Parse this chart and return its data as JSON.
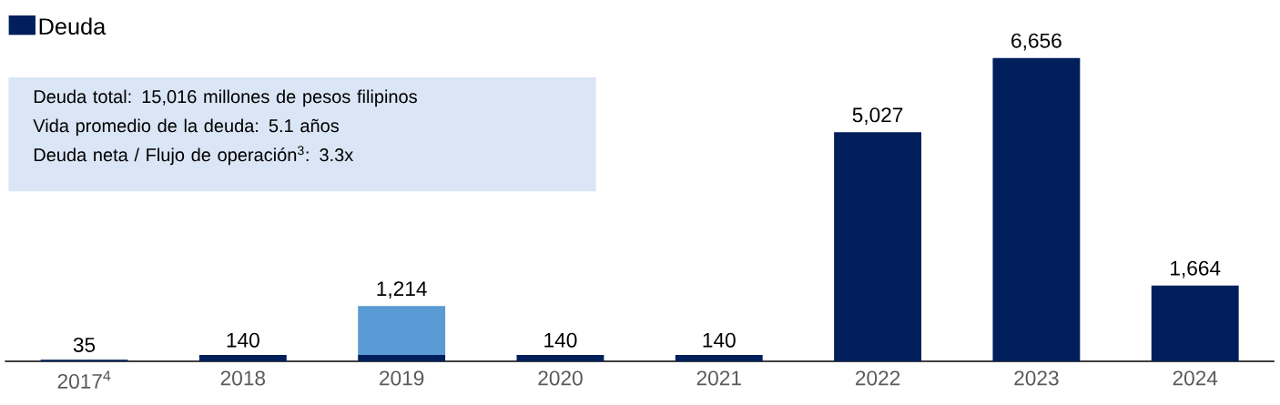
{
  "chart_data": {
    "type": "bar",
    "stacked": true,
    "legend": "top left",
    "categories": [
      "2017$^{4}$",
      "2018",
      "2019",
      "2020",
      "2021",
      "2022",
      "2023",
      "2024"
    ],
    "series": [
      {
        "name": "Deuda",
        "color": "#001f5b",
        "values": [
          35,
          140,
          140,
          140,
          140,
          5027,
          6656,
          1664
        ],
        "value_labels": [
          "35",
          "140",
          null,
          "140",
          "140",
          "5,027",
          "6,656",
          "1,664"
        ]
      },
      {
        "color": "#5b9bd5",
        "values": [
          null,
          null,
          1074,
          null,
          null,
          null,
          null,
          null
        ]
      }
    ],
    "totals": [
      null,
      null,
      "1,214",
      null,
      null,
      null,
      null,
      null
    ],
    "annotations": [
      "Deuda total: 15,016 millones de pesos filipinos",
      "Vida promedio de la deuda: 5.1 años",
      "Deuda neta / Flujo de operación$^{3}$: 3.3x"
    ]
  }
}
